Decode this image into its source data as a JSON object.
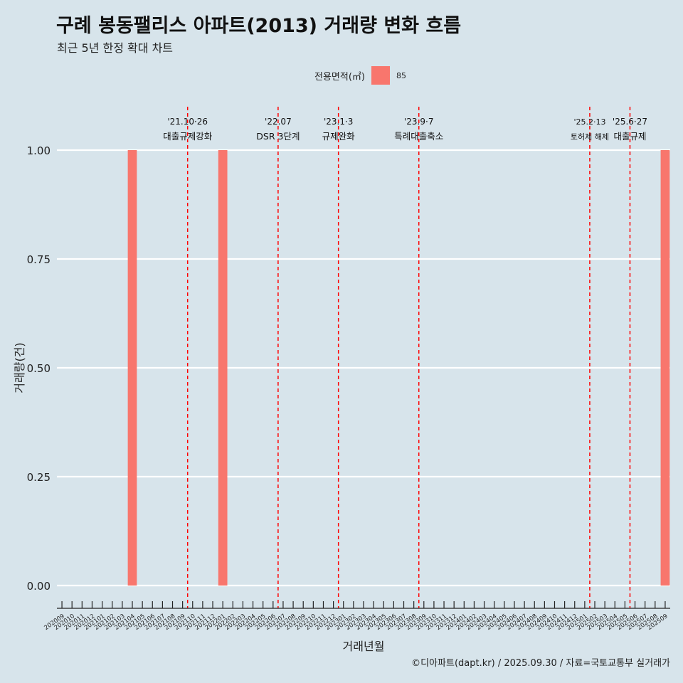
{
  "title": "구례 봉동팰리스 아파트(2013) 거래량 변화 흐름",
  "subtitle": "최근 5년 한정 확대 차트",
  "caption": "©디아파트(dapt.kr) / 2025.09.30 / 자료=국토교통부 실거래가",
  "legend": {
    "title": "전용면적(㎡)",
    "item": "85",
    "color": "#f8766d"
  },
  "colors": {
    "background": "#d7e4eb",
    "bar": "#f8766d",
    "event_line": "#ff0000",
    "grid": "#ffffff",
    "text": "#222222"
  },
  "chart_data": {
    "type": "bar",
    "title": "구례 봉동팰리스 아파트(2013) 거래량 변화 흐름",
    "xlabel": "거래년월",
    "ylabel": "거래량(건)",
    "ylim": [
      0,
      1
    ],
    "yticks": [
      0,
      0.25,
      0.5,
      0.75,
      1
    ],
    "ytick_labels": [
      "0.00",
      "0.25",
      "0.50",
      "0.75",
      "1.00"
    ],
    "categories": [
      "202009",
      "202010",
      "202011",
      "202012",
      "202101",
      "202102",
      "202103",
      "202104",
      "202105",
      "202106",
      "202107",
      "202108",
      "202109",
      "202110",
      "202111",
      "202112",
      "202201",
      "202202",
      "202203",
      "202204",
      "202205",
      "202206",
      "202207",
      "202208",
      "202209",
      "202210",
      "202211",
      "202212",
      "202301",
      "202302",
      "202303",
      "202304",
      "202305",
      "202306",
      "202307",
      "202308",
      "202309",
      "202310",
      "202311",
      "202312",
      "202401",
      "202402",
      "202403",
      "202404",
      "202405",
      "202406",
      "202407",
      "202408",
      "202409",
      "202410",
      "202411",
      "202412",
      "202501",
      "202502",
      "202503",
      "202504",
      "202505",
      "202506",
      "202507",
      "202508",
      "202509"
    ],
    "series": [
      {
        "name": "85",
        "color": "#f8766d",
        "values": [
          0,
          0,
          0,
          0,
          0,
          0,
          0,
          1,
          0,
          0,
          0,
          0,
          0,
          0,
          0,
          0,
          1,
          0,
          0,
          0,
          0,
          0,
          0,
          0,
          0,
          0,
          0,
          0,
          0,
          0,
          0,
          0,
          0,
          0,
          0,
          0,
          0,
          0,
          0,
          0,
          0,
          0,
          0,
          0,
          0,
          0,
          0,
          0,
          0,
          0,
          0,
          0,
          0,
          0,
          0,
          0,
          0,
          0,
          0,
          0,
          1
        ]
      }
    ],
    "events": [
      {
        "position": 13.0,
        "date": "'21.10·26",
        "label": "대출규제강화"
      },
      {
        "position": 22.0,
        "date": "'22.07",
        "label": "DSR 3단계"
      },
      {
        "position": 28.0,
        "date": "'23.1·3",
        "label": "규제완화"
      },
      {
        "position": 36.0,
        "date": "'23.9·7",
        "label": "특례대출축소"
      },
      {
        "position": 53.0,
        "date": "'25.2·13",
        "label": "토허제 해제"
      },
      {
        "position": 57.0,
        "date": "'25.6·27",
        "label": "대출규제"
      }
    ]
  }
}
